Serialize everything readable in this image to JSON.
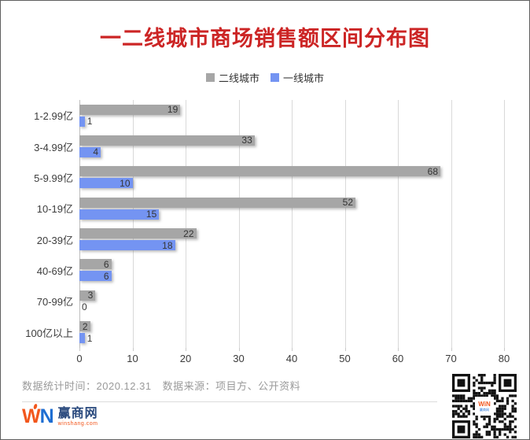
{
  "title": {
    "text": "一二线城市商场销售额区间分布图",
    "color": "#cc2525"
  },
  "chart_data": {
    "type": "bar",
    "orientation": "horizontal",
    "title": "一二线城市商场销售额区间分布图",
    "categories": [
      "1-2.99亿",
      "3-4.99亿",
      "5-9.99亿",
      "10-19亿",
      "20-39亿",
      "40-69亿",
      "70-99亿",
      "100亿以上"
    ],
    "series": [
      {
        "name": "二线城市",
        "color": "#a6a6a6",
        "values": [
          19,
          33,
          68,
          52,
          22,
          6,
          3,
          2
        ]
      },
      {
        "name": "一线城市",
        "color": "#7494f2",
        "values": [
          1,
          4,
          10,
          15,
          18,
          6,
          0,
          1
        ]
      }
    ],
    "xlim": [
      0,
      80
    ],
    "xticks": [
      0,
      10,
      20,
      30,
      40,
      50,
      60,
      70,
      80
    ],
    "grid": true,
    "legend_position": "top",
    "value_labels": true
  },
  "footer": {
    "stats_time": "数据统计时间：2020.12.31",
    "source": "数据来源：项目方、公开资料",
    "logo": {
      "w": "W",
      "n": "N",
      "cn": "赢商网",
      "domain": "winshang.com"
    },
    "qr_center": {
      "wn": "WiN",
      "cn": "赢商网"
    }
  },
  "colors": {
    "title_red": "#cc2525",
    "bar_gray": "#a6a6a6",
    "bar_blue": "#7494f2",
    "gridline": "#d9d9d9",
    "axis_text": "#3a3a3a",
    "footer_text": "#9a9a9a",
    "logo_orange": "#f2571d",
    "logo_blue": "#1e6ed2",
    "logo_navy": "#29497d"
  }
}
